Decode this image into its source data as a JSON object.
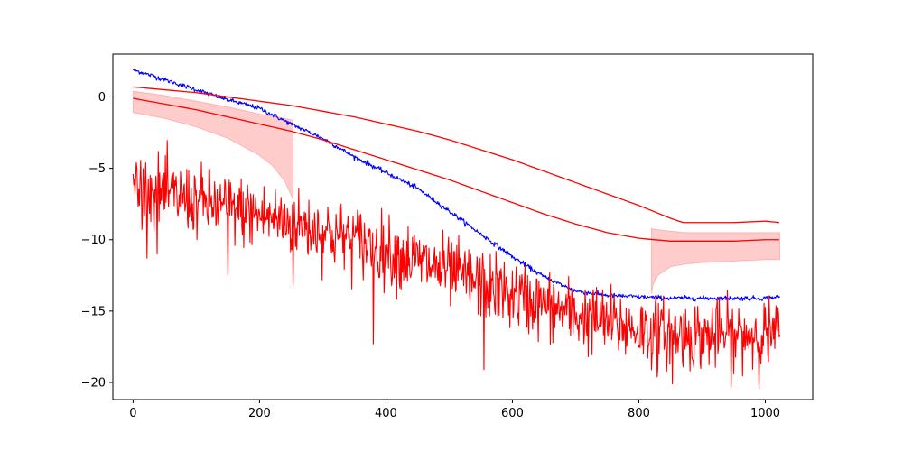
{
  "chart_data": {
    "type": "line",
    "title": "",
    "xlabel": "",
    "ylabel": "",
    "xlim": [
      -32,
      1075
    ],
    "ylim": [
      -21.2,
      3.0
    ],
    "grid": false,
    "x_ticks": [
      0,
      200,
      400,
      600,
      800,
      1000
    ],
    "x_tick_labels": [
      "0",
      "200",
      "400",
      "600",
      "800",
      "1000"
    ],
    "y_ticks": [
      0,
      -5,
      -10,
      -15,
      -20
    ],
    "y_tick_labels": [
      "0",
      "−5",
      "−10",
      "−15",
      "−20"
    ],
    "colors": {
      "blue": "#0000ff",
      "red": "#ff0000",
      "band": "#ff0000",
      "band_opacity": 0.2
    },
    "series": [
      {
        "color": "#0000ff",
        "style": "noisy-line",
        "x": [
          0,
          50,
          100,
          150,
          200,
          250,
          300,
          350,
          400,
          450,
          500,
          550,
          600,
          650,
          700,
          750,
          800,
          850,
          900,
          950,
          1000,
          1023
        ],
        "y": [
          1.9,
          1.2,
          0.5,
          -0.2,
          -0.8,
          -1.9,
          -2.9,
          -4.2,
          -5.3,
          -6.4,
          -8.0,
          -9.6,
          -11.2,
          -12.6,
          -13.6,
          -13.9,
          -14.0,
          -14.1,
          -14.1,
          -14.1,
          -14.1,
          -14.0
        ],
        "noise": 0.08
      },
      {
        "color": "#ff0000",
        "style": "smooth-line",
        "x": [
          0,
          50,
          100,
          150,
          200,
          250,
          300,
          350,
          400,
          450,
          500,
          550,
          600,
          650,
          700,
          750,
          800,
          850,
          870,
          900,
          950,
          1000,
          1023
        ],
        "y": [
          0.7,
          0.5,
          0.3,
          0.0,
          -0.3,
          -0.6,
          -1.0,
          -1.4,
          -1.9,
          -2.4,
          -3.0,
          -3.7,
          -4.4,
          -5.2,
          -6.0,
          -6.8,
          -7.6,
          -8.5,
          -8.8,
          -8.8,
          -8.8,
          -8.7,
          -8.8
        ]
      },
      {
        "color": "#ff0000",
        "style": "smooth-line",
        "x": [
          0,
          50,
          100,
          150,
          200,
          250,
          300,
          350,
          400,
          450,
          500,
          550,
          600,
          650,
          700,
          750,
          800,
          850,
          900,
          950,
          1000,
          1023
        ],
        "y": [
          -0.1,
          -0.5,
          -0.9,
          -1.4,
          -1.9,
          -2.4,
          -3.0,
          -3.7,
          -4.4,
          -5.1,
          -5.8,
          -6.6,
          -7.4,
          -8.2,
          -8.9,
          -9.5,
          -9.9,
          -10.1,
          -10.1,
          -10.1,
          -10.0,
          -10.0
        ]
      },
      {
        "color": "#ff0000",
        "style": "noisy-line",
        "x": [
          0,
          50,
          100,
          150,
          200,
          250,
          300,
          350,
          400,
          450,
          500,
          550,
          600,
          650,
          700,
          750,
          800,
          850,
          900,
          950,
          1000,
          1023
        ],
        "y": [
          -6.2,
          -6.8,
          -7.3,
          -7.8,
          -8.3,
          -8.8,
          -9.4,
          -10.0,
          -10.8,
          -11.5,
          -12.3,
          -13.1,
          -13.9,
          -14.6,
          -15.3,
          -15.8,
          -16.3,
          -16.6,
          -16.7,
          -16.7,
          -16.6,
          -16.7
        ],
        "noise": 1.2,
        "spikes": [
          {
            "x": 5,
            "y": -4.6
          },
          {
            "x": 38,
            "y": -11.0
          },
          {
            "x": 150,
            "y": -12.5
          },
          {
            "x": 253,
            "y": -13.2
          },
          {
            "x": 380,
            "y": -17.3
          },
          {
            "x": 555,
            "y": -19.1
          },
          {
            "x": 830,
            "y": -19.0
          },
          {
            "x": 853,
            "y": -20.1
          },
          {
            "x": 950,
            "y": -19.4
          }
        ]
      }
    ],
    "bands": [
      {
        "color": "#ff0000",
        "opacity": 0.2,
        "x": [
          0,
          50,
          100,
          150,
          200,
          220,
          240,
          250,
          253
        ],
        "upper": [
          0.4,
          0.1,
          -0.3,
          -0.7,
          -1.2,
          -1.35,
          -1.5,
          -1.6,
          -1.65
        ],
        "lower": [
          -1.1,
          -1.5,
          -2.1,
          -2.9,
          -4.1,
          -4.8,
          -5.9,
          -6.9,
          -7.2
        ]
      },
      {
        "color": "#ff0000",
        "opacity": 0.2,
        "x": [
          820,
          822,
          830,
          850,
          875,
          900,
          950,
          1000,
          1023
        ],
        "upper": [
          -9.2,
          -9.25,
          -9.3,
          -9.4,
          -9.5,
          -9.5,
          -9.5,
          -9.5,
          -9.5
        ],
        "lower": [
          -13.8,
          -13.2,
          -12.5,
          -11.9,
          -11.7,
          -11.6,
          -11.5,
          -11.4,
          -11.4
        ]
      }
    ]
  }
}
